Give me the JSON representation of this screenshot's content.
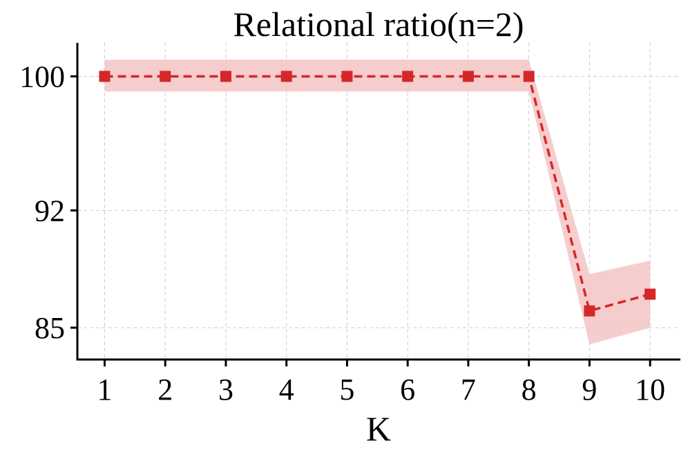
{
  "chart_data": {
    "type": "line",
    "title": "Relational ratio(n=2)",
    "xlabel": "K",
    "ylabel": "",
    "x": [
      1,
      2,
      3,
      4,
      5,
      6,
      7,
      8,
      9,
      10
    ],
    "xticks": [
      "1",
      "2",
      "3",
      "4",
      "5",
      "6",
      "7",
      "8",
      "9",
      "10"
    ],
    "yticks": [
      85,
      92,
      100
    ],
    "ylim": [
      83.1,
      102.0
    ],
    "xlim": [
      0.55,
      10.5
    ],
    "grid": true,
    "series": [
      {
        "values": [
          100,
          100,
          100,
          100,
          100,
          100,
          100,
          100,
          86,
          87
        ],
        "lower": [
          99.1,
          99.1,
          99.1,
          99.1,
          99.1,
          99.1,
          99.1,
          99.1,
          84,
          85
        ],
        "upper": [
          101.0,
          101.0,
          101.0,
          101.0,
          101.0,
          101.0,
          101.0,
          101.0,
          88.2,
          89.0
        ],
        "color": "#d62728",
        "band_color": "#f4c4c4",
        "marker": "square",
        "linestyle": "dashed"
      }
    ]
  }
}
